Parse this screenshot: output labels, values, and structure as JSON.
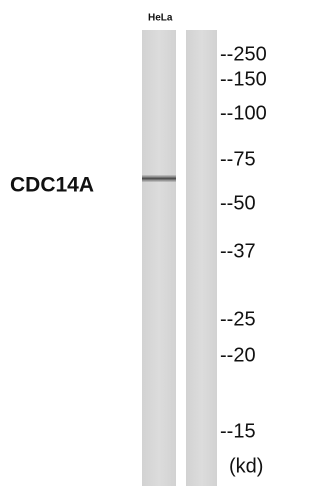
{
  "lane_label": "HeLa",
  "protein_label": "CDC14A",
  "markers": [
    "--250",
    "--150",
    "--100",
    "--75",
    "--50",
    "--37",
    "--25",
    "--20",
    "--15"
  ],
  "unit": "(kd)"
}
